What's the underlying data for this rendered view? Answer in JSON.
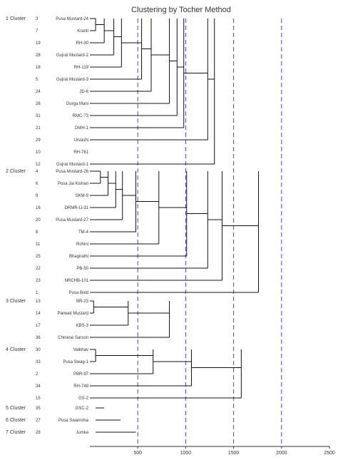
{
  "chart_data": {
    "type": "dendrogram",
    "title": "Clustering by Tocher Method",
    "xlim": [
      0,
      2500
    ],
    "xticks": [
      500,
      1000,
      1500,
      2000,
      2500
    ],
    "reference_lines": [
      500,
      1000,
      1500,
      2000
    ],
    "clusters": [
      {
        "name": "1 Cluster",
        "items": [
          {
            "num": "3",
            "name": "Pusa Mustard-24"
          },
          {
            "num": "7",
            "name": "Kranti"
          },
          {
            "num": "19",
            "name": "RH-30"
          },
          {
            "num": "28",
            "name": "Gujrat Mustard-2"
          },
          {
            "num": "18",
            "name": "RH-119"
          },
          {
            "num": "5",
            "name": "Gujrat Mustard-3"
          },
          {
            "num": "24",
            "name": "JD-6"
          },
          {
            "num": "26",
            "name": "Durga Mani"
          },
          {
            "num": "31",
            "name": "RMC-73"
          },
          {
            "num": "21",
            "name": "DMH-1"
          },
          {
            "num": "29",
            "name": "Urvashi"
          },
          {
            "num": "10",
            "name": "RH-781"
          },
          {
            "num": "12",
            "name": "Gujrat Mustard-1"
          }
        ]
      },
      {
        "name": "2 Cluster",
        "items": [
          {
            "num": "4",
            "name": "Pusa Mustard-26"
          },
          {
            "num": "6",
            "name": "Pusa Jai Kishan"
          },
          {
            "num": "9",
            "name": "SKM-9"
          },
          {
            "num": "16",
            "name": "DRMR-IJ-31"
          },
          {
            "num": "20",
            "name": "Pusa Mustard-27"
          },
          {
            "num": "8",
            "name": "TM-4"
          },
          {
            "num": "11",
            "name": "Rohini"
          },
          {
            "num": "25",
            "name": "Bhagirathi"
          },
          {
            "num": "22",
            "name": "PB-50"
          },
          {
            "num": "23",
            "name": "NRCHB-101"
          },
          {
            "num": "1",
            "name": "Pusa Bold"
          }
        ]
      },
      {
        "name": "3 Cluster",
        "items": [
          {
            "num": "13",
            "name": "BR-23"
          },
          {
            "num": "14",
            "name": "Parwati Mustard"
          },
          {
            "num": "17",
            "name": "KBS-3"
          },
          {
            "num": "36",
            "name": "Chinese Sarson"
          }
        ]
      },
      {
        "name": "4 Cluster",
        "items": [
          {
            "num": "30",
            "name": "Vaibhav"
          },
          {
            "num": "33",
            "name": "Pusa Swag-1"
          },
          {
            "num": "2",
            "name": "PBR-97"
          },
          {
            "num": "34",
            "name": "RH-749"
          },
          {
            "num": "15",
            "name": "GS-2"
          }
        ]
      },
      {
        "name": "5 Cluster",
        "items": [
          {
            "num": "35",
            "name": "GSC-2"
          }
        ]
      },
      {
        "name": "6 Cluster",
        "items": [
          {
            "num": "27",
            "name": "Pusa Swarnima"
          }
        ]
      },
      {
        "name": "7 Cluster",
        "items": [
          {
            "num": "28",
            "name": "Jumka"
          }
        ]
      }
    ],
    "merges": [
      {
        "cluster": 1,
        "items": [
          0,
          1
        ],
        "height": 60
      },
      {
        "cluster": 1,
        "items": [
          0,
          1,
          2
        ],
        "height": 150
      },
      {
        "cluster": 1,
        "items": [
          0,
          1,
          2,
          3
        ],
        "height": 250
      },
      {
        "cluster": 1,
        "items": [
          0,
          1,
          2,
          3,
          4
        ],
        "height": 330
      },
      {
        "cluster": 1,
        "items": [
          0,
          1,
          2,
          3,
          4,
          5
        ],
        "height": 540
      },
      {
        "cluster": 1,
        "items": [
          0,
          1,
          2,
          3,
          4,
          5,
          6
        ],
        "height": 640
      },
      {
        "cluster": 1,
        "items": [
          0,
          1,
          2,
          3,
          4,
          5,
          6,
          7
        ],
        "height": 830
      },
      {
        "cluster": 1,
        "items": [
          0,
          1,
          2,
          3,
          4,
          5,
          6,
          7,
          8
        ],
        "height": 910
      },
      {
        "cluster": 1,
        "items": [
          0,
          1,
          2,
          3,
          4,
          5,
          6,
          7,
          8,
          9
        ],
        "height": 980
      },
      {
        "cluster": 1,
        "items": [
          0,
          1,
          2,
          3,
          4,
          5,
          6,
          7,
          8,
          9,
          10
        ],
        "height": 1230
      },
      {
        "cluster": 1,
        "items": [
          0,
          1,
          2,
          3,
          4,
          5,
          6,
          7,
          8,
          9,
          10,
          11,
          12
        ],
        "height": 1300
      },
      {
        "cluster": 2,
        "items": [
          0,
          1
        ],
        "height": 110
      },
      {
        "cluster": 2,
        "items": [
          0,
          1,
          2
        ],
        "height": 190
      },
      {
        "cluster": 2,
        "items": [
          0,
          1,
          2,
          3
        ],
        "height": 270
      },
      {
        "cluster": 2,
        "items": [
          0,
          1,
          2,
          3,
          4
        ],
        "height": 340
      },
      {
        "cluster": 2,
        "items": [
          0,
          1,
          2,
          3,
          4,
          5
        ],
        "height": 480
      },
      {
        "cluster": 2,
        "items": [
          0,
          1,
          2,
          3,
          4,
          5,
          6
        ],
        "height": 720
      },
      {
        "cluster": 2,
        "items": [
          0,
          1,
          2,
          3,
          4,
          5,
          6,
          7
        ],
        "height": 1010
      },
      {
        "cluster": 2,
        "items": [
          0,
          1,
          2,
          3,
          4,
          5,
          6,
          7,
          8
        ],
        "height": 1230
      },
      {
        "cluster": 2,
        "items": [
          0,
          1,
          2,
          3,
          4,
          5,
          6,
          7,
          8,
          9
        ],
        "height": 1380
      },
      {
        "cluster": 2,
        "items": [
          0,
          1,
          2,
          3,
          4,
          5,
          6,
          7,
          8,
          9,
          10
        ],
        "height": 1760
      },
      {
        "cluster": 3,
        "items": [
          0,
          1
        ],
        "height": 40
      },
      {
        "cluster": 3,
        "items": [
          0,
          1,
          2
        ],
        "height": 400
      },
      {
        "cluster": 3,
        "items": [
          0,
          1,
          2,
          3
        ],
        "height": 830
      },
      {
        "cluster": 4,
        "items": [
          0,
          1
        ],
        "height": 60
      },
      {
        "cluster": 4,
        "items": [
          0,
          1,
          2
        ],
        "height": 660
      },
      {
        "cluster": 4,
        "items": [
          0,
          1,
          2,
          3
        ],
        "height": 1060
      },
      {
        "cluster": 4,
        "items": [
          0,
          1,
          2,
          3,
          4
        ],
        "height": 1580
      }
    ],
    "single_branches": [
      {
        "cluster": 5,
        "height": 150
      },
      {
        "cluster": 6,
        "height": 320
      },
      {
        "cluster": 7,
        "height": 480
      }
    ]
  }
}
